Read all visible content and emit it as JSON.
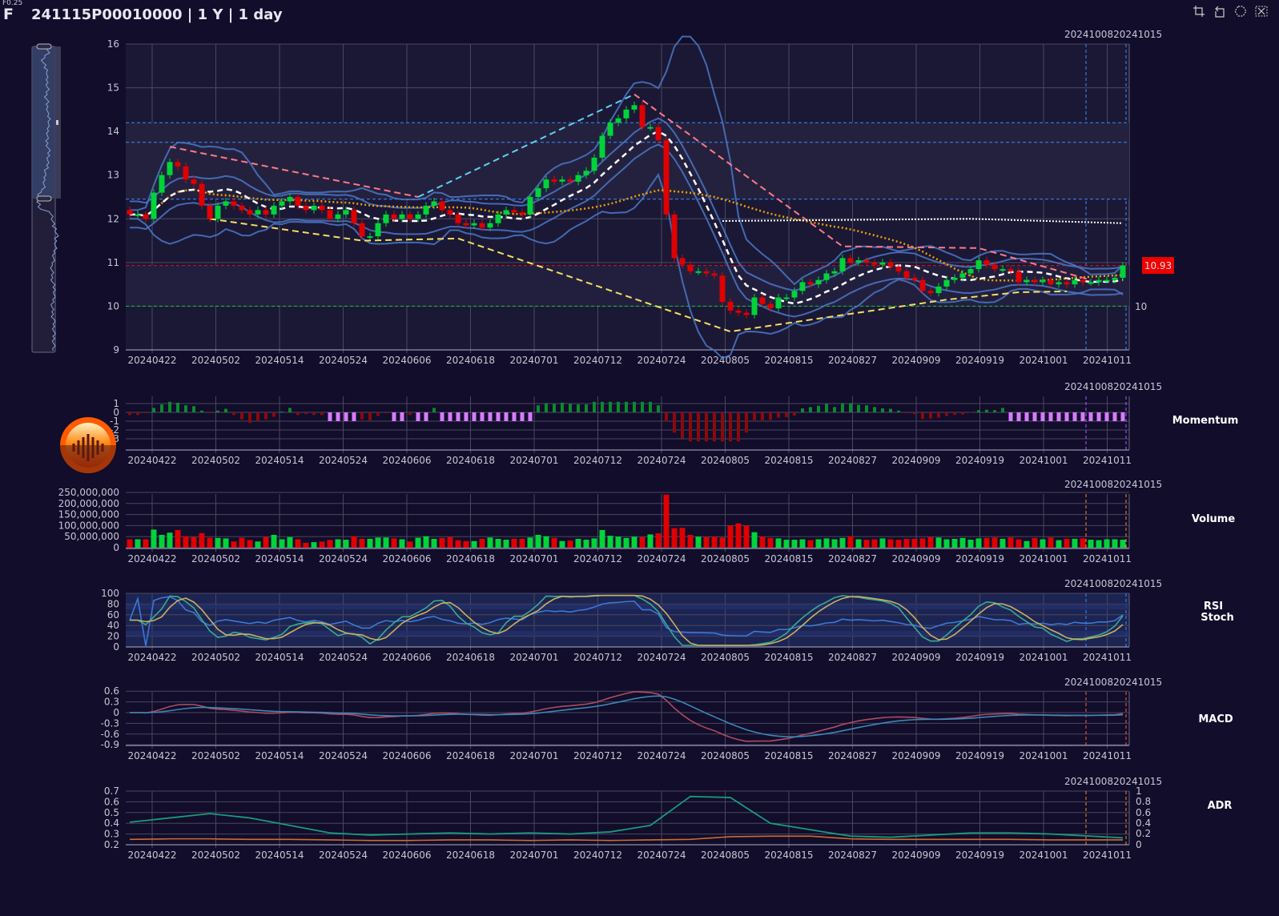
{
  "header": {
    "symbol": "F",
    "title": "241115P00010000 | 1 Y | 1 day",
    "tiny_label": "F0.25"
  },
  "toolbar": {
    "icons": [
      "crop-icon",
      "back-icon",
      "restore-icon",
      "clear-icon"
    ]
  },
  "panels": {
    "momentum": "Momentum",
    "volume": "Volume",
    "rsi": "RSI",
    "stoch": "Stoch",
    "macd": "MACD",
    "adr": "ADR"
  },
  "range_label": "2024100820241015",
  "colors": {
    "up": "#00d43a",
    "down": "#e00000",
    "background": "#110d2a",
    "price_tag": "#ee0000"
  },
  "chart_data": [
    {
      "type": "candlestick",
      "name": "price",
      "x_ticks": [
        "20240422",
        "20240502",
        "20240514",
        "20240524",
        "20240606",
        "20240618",
        "20240701",
        "20240712",
        "20240724",
        "20240805",
        "20240815",
        "20240827",
        "20240909",
        "20240919",
        "20241001",
        "20241011"
      ],
      "y_ticks": [
        "16",
        "15",
        "14",
        "13",
        "12",
        "11",
        "10",
        "9"
      ],
      "ylim": [
        9,
        16
      ],
      "last_price": "10.93",
      "right_label": "10",
      "h_lines": [
        {
          "value": 14.2,
          "color": "#3a8cff"
        },
        {
          "value": 13.75,
          "color": "#3a8cff"
        },
        {
          "value": 12.45,
          "color": "#3a8cff"
        },
        {
          "value": 10.93,
          "color": "#e01010"
        },
        {
          "value": 10,
          "color": "#00cc33"
        }
      ],
      "close": [
        12.1,
        12.1,
        12.0,
        12.6,
        13.0,
        13.3,
        13.2,
        12.9,
        12.8,
        12.3,
        12.0,
        12.3,
        12.4,
        12.3,
        12.2,
        12.1,
        12.2,
        12.1,
        12.3,
        12.4,
        12.5,
        12.3,
        12.2,
        12.3,
        12.2,
        12.0,
        12.1,
        12.2,
        11.9,
        11.6,
        11.6,
        11.9,
        12.1,
        12.0,
        12.1,
        12.0,
        12.1,
        12.3,
        12.4,
        12.2,
        12.1,
        11.9,
        11.85,
        11.9,
        11.8,
        11.9,
        12.1,
        12.2,
        12.15,
        12.1,
        12.5,
        12.7,
        12.9,
        12.85,
        12.9,
        12.85,
        13.0,
        13.1,
        13.4,
        13.9,
        14.2,
        14.3,
        14.5,
        14.6,
        14.1,
        14.1,
        13.8,
        12.1,
        11.1,
        10.95,
        10.8,
        10.8,
        10.75,
        10.7,
        10.1,
        9.9,
        9.85,
        9.8,
        10.2,
        10.05,
        9.95,
        10.2,
        10.2,
        10.35,
        10.55,
        10.5,
        10.6,
        10.75,
        10.8,
        11.1,
        11.0,
        11.05,
        11.0,
        10.95,
        11.0,
        10.9,
        10.8,
        10.65,
        10.6,
        10.35,
        10.3,
        10.45,
        10.6,
        10.65,
        10.75,
        10.85,
        11.05,
        10.95,
        10.85,
        10.85,
        10.8,
        10.55,
        10.6,
        10.55,
        10.6,
        10.5,
        10.55,
        10.5,
        10.6,
        10.55,
        10.55,
        10.6,
        10.6,
        10.65,
        10.93
      ],
      "trendlines": [
        {
          "color": "#ff7a85",
          "points": [
            [
              5,
              13.65
            ],
            [
              36,
              12.5
            ]
          ]
        },
        {
          "color": "#5fd0f0",
          "points": [
            [
              36,
              12.5
            ],
            [
              63,
              14.85
            ]
          ]
        },
        {
          "color": "#ff7a85",
          "points": [
            [
              63,
              14.85
            ],
            [
              89,
              11.37
            ],
            [
              106,
              11.33
            ],
            [
              120,
              10.6
            ]
          ]
        },
        {
          "color": "#f5e060",
          "points": [
            [
              10,
              12.0
            ],
            [
              29,
              11.5
            ],
            [
              41,
              11.55
            ],
            [
              75,
              9.42
            ],
            [
              102,
              10.15
            ],
            [
              111,
              10.32
            ],
            [
              117,
              10.34
            ]
          ]
        },
        {
          "color": "#ffffff",
          "dotted": true,
          "points": [
            [
              74,
              11.95
            ],
            [
              105,
              12.0
            ],
            [
              124,
              11.9
            ]
          ]
        }
      ]
    },
    {
      "type": "bar",
      "name": "momentum",
      "y_ticks": [
        "1",
        "0",
        "-1",
        "-2",
        "-3"
      ],
      "signal_ranges": [
        [
          25,
          28
        ],
        [
          33,
          34
        ],
        [
          36,
          37
        ],
        [
          39,
          50
        ],
        [
          110,
          124
        ]
      ],
      "signal_color": "#d77bff"
    },
    {
      "type": "bar",
      "name": "volume",
      "y_ticks": [
        "250,000,000",
        "200,000,000",
        "150,000,000",
        "100,000,000",
        "50,000,000",
        "0"
      ],
      "unit": "millions",
      "values": [
        38,
        38,
        38,
        82,
        58,
        68,
        80,
        52,
        48,
        66,
        45,
        44,
        42,
        28,
        45,
        35,
        28,
        48,
        58,
        38,
        48,
        38,
        22,
        25,
        28,
        35,
        38,
        36,
        52,
        40,
        40,
        46,
        46,
        42,
        38,
        28,
        45,
        52,
        40,
        44,
        48,
        34,
        30,
        30,
        40,
        46,
        40,
        36,
        40,
        40,
        46,
        58,
        52,
        44,
        30,
        32,
        40,
        36,
        42,
        80,
        54,
        50,
        44,
        50,
        48,
        60,
        65,
        240,
        88,
        90,
        58,
        50,
        48,
        50,
        46,
        100,
        110,
        100,
        70,
        50,
        44,
        42,
        36,
        36,
        38,
        34,
        38,
        42,
        38,
        44,
        52,
        38,
        36,
        38,
        42,
        38,
        36,
        40,
        40,
        42,
        48,
        46,
        38,
        40,
        44,
        36,
        42,
        44,
        46,
        40,
        46,
        38,
        30,
        44,
        38,
        46,
        34,
        40,
        40,
        42,
        36,
        34,
        38,
        38,
        36
      ]
    },
    {
      "type": "line",
      "name": "rsi-stoch",
      "y_ticks": [
        "100",
        "80",
        "60",
        "40",
        "20",
        "0"
      ],
      "ylim": [
        0,
        100
      ]
    },
    {
      "type": "line",
      "name": "macd",
      "y_ticks": [
        "0.6",
        "0.3",
        "0",
        "-0.3",
        "-0.6",
        "-0.9"
      ],
      "ylim": [
        -0.9,
        0.6
      ]
    },
    {
      "type": "line",
      "name": "adr",
      "y_ticks": [
        "0.7",
        "0.6",
        "0.5",
        "0.4",
        "0.3",
        "0.2"
      ],
      "y2_ticks": [
        "1",
        "0.8",
        "0.6",
        "0.4",
        "0.2",
        "0"
      ],
      "ylim": [
        0.2,
        0.7
      ],
      "teal_every5": [
        0.41,
        0.45,
        0.49,
        0.45,
        0.38,
        0.31,
        0.29,
        0.3,
        0.31,
        0.3,
        0.31,
        0.3,
        0.32,
        0.38,
        0.65,
        0.64,
        0.4,
        0.34,
        0.28,
        0.27,
        0.29,
        0.31,
        0.31,
        0.3,
        0.28,
        0.26
      ],
      "orange_every5": [
        0.25,
        0.255,
        0.255,
        0.25,
        0.25,
        0.245,
        0.24,
        0.24,
        0.245,
        0.245,
        0.24,
        0.245,
        0.24,
        0.245,
        0.25,
        0.275,
        0.28,
        0.28,
        0.255,
        0.25,
        0.25,
        0.25,
        0.25,
        0.245,
        0.245,
        0.245
      ]
    }
  ]
}
